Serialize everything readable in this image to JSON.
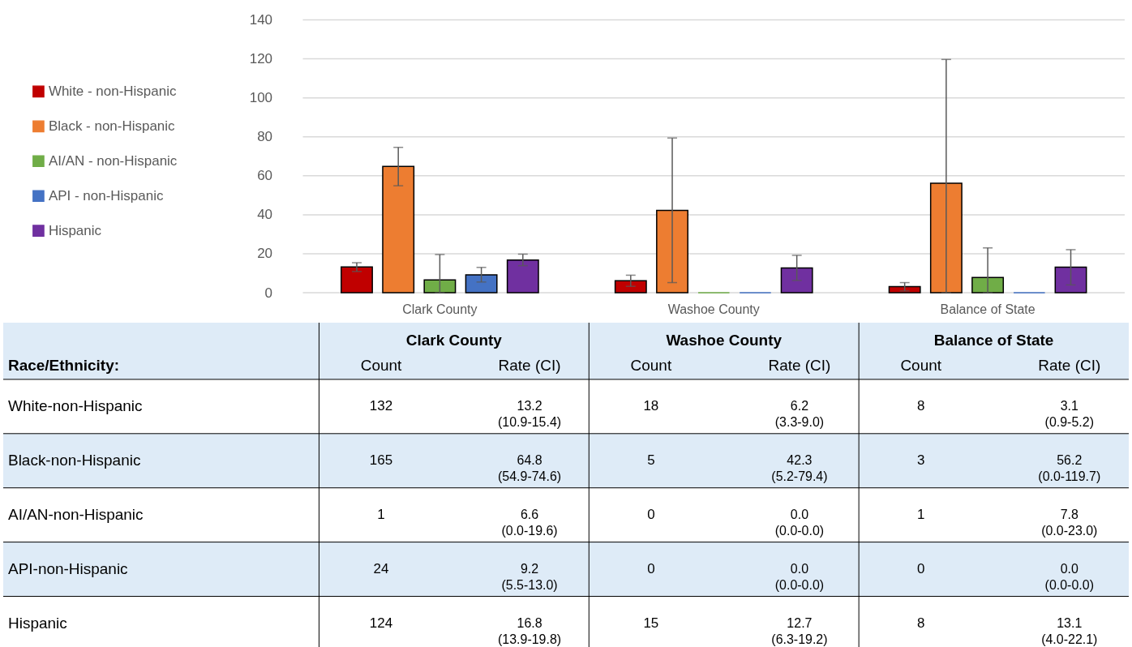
{
  "chart_data": [
    {
      "type": "bar",
      "categories": [
        "Clark County",
        "Washoe County",
        "Balance of State"
      ],
      "series": [
        {
          "name": "White - non-Hispanic",
          "color": "#c00000",
          "values": [
            13.2,
            6.2,
            3.1
          ],
          "errors": [
            [
              10.9,
              15.4
            ],
            [
              3.3,
              9.0
            ],
            [
              0.9,
              5.2
            ]
          ]
        },
        {
          "name": "Black - non-Hispanic",
          "color": "#ed7d31",
          "values": [
            64.8,
            42.3,
            56.2
          ],
          "errors": [
            [
              54.9,
              74.6
            ],
            [
              5.2,
              79.4
            ],
            [
              0.0,
              119.7
            ]
          ]
        },
        {
          "name": "AI/AN - non-Hispanic",
          "color": "#70ad47",
          "values": [
            6.6,
            0.0,
            7.8
          ],
          "errors": [
            [
              0.0,
              19.6
            ],
            [
              0.0,
              0.0
            ],
            [
              0.0,
              23.0
            ]
          ]
        },
        {
          "name": "API - non-Hispanic",
          "color": "#4472c4",
          "values": [
            9.2,
            0.0,
            0.0
          ],
          "errors": [
            [
              5.5,
              13.0
            ],
            [
              0.0,
              0.0
            ],
            [
              0.0,
              0.0
            ]
          ]
        },
        {
          "name": "Hispanic",
          "color": "#7030a0",
          "values": [
            16.8,
            12.7,
            13.1
          ],
          "errors": [
            [
              13.9,
              19.8
            ],
            [
              6.3,
              19.2
            ],
            [
              4.0,
              22.1
            ]
          ]
        }
      ],
      "ylim": [
        0,
        140
      ],
      "yticks": [
        0,
        20,
        40,
        60,
        80,
        100,
        120,
        140
      ],
      "grid": "y",
      "legend": "left"
    },
    {
      "type": "other",
      "categories": [
        "Clark County",
        "Washoe County",
        "Balance of State"
      ],
      "annotations": [
        "Race/Ethnicity:",
        "Count",
        "Rate (CI)"
      ],
      "y_categories": [
        "White-non-Hispanic",
        "Black-non-Hispanic",
        "AI/AN-non-Hispanic",
        "API-non-Hispanic",
        "Hispanic"
      ],
      "cell_labels": [
        [
          "132",
          "13.2\n(10.9-15.4)",
          "18",
          "6.2\n(3.3-9.0)",
          "8",
          "3.1\n(0.9-5.2)"
        ],
        [
          "165",
          "64.8\n(54.9-74.6)",
          "5",
          "42.3\n(5.2-79.4)",
          "3",
          "56.2\n(0.0-119.7)"
        ],
        [
          "1",
          "6.6\n(0.0-19.6)",
          "0",
          "0.0\n(0.0-0.0)",
          "1",
          "7.8\n(0.0-23.0)"
        ],
        [
          "24",
          "9.2\n(5.5-13.0)",
          "0",
          "0.0\n(0.0-0.0)",
          "0",
          "0.0\n(0.0-0.0)"
        ],
        [
          "124",
          "16.8\n(13.9-19.8)",
          "15",
          "12.7\n(6.3-19.2)",
          "8",
          "13.1\n(4.0-22.1)"
        ]
      ]
    }
  ]
}
